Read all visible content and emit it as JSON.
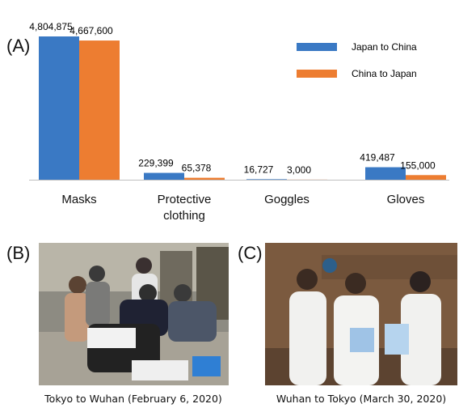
{
  "panel_labels": [
    "(A)",
    "(B)",
    "(C)"
  ],
  "chart_data": {
    "type": "bar",
    "categories": [
      "Masks",
      "Protective clothing",
      "Goggles",
      "Gloves"
    ],
    "series": [
      {
        "name": "Japan to China",
        "color": "#3a79c4",
        "values": [
          4804875,
          229399,
          16727,
          419487
        ],
        "value_labels": [
          "4,804,875",
          "229,399",
          "16,727",
          "419,487"
        ]
      },
      {
        "name": "China to Japan",
        "color": "#ed7d31",
        "values": [
          4667600,
          65378,
          3000,
          155000
        ],
        "value_labels": [
          "4,667,600",
          "65,378",
          "3,000",
          "155,000"
        ]
      }
    ],
    "legend": "upper right",
    "grid": false
  },
  "photos": [
    {
      "caption": "Tokyo to Wuhan (February 6, 2020)"
    },
    {
      "caption": "Wuhan to Tokyo (March 30, 2020)"
    }
  ]
}
